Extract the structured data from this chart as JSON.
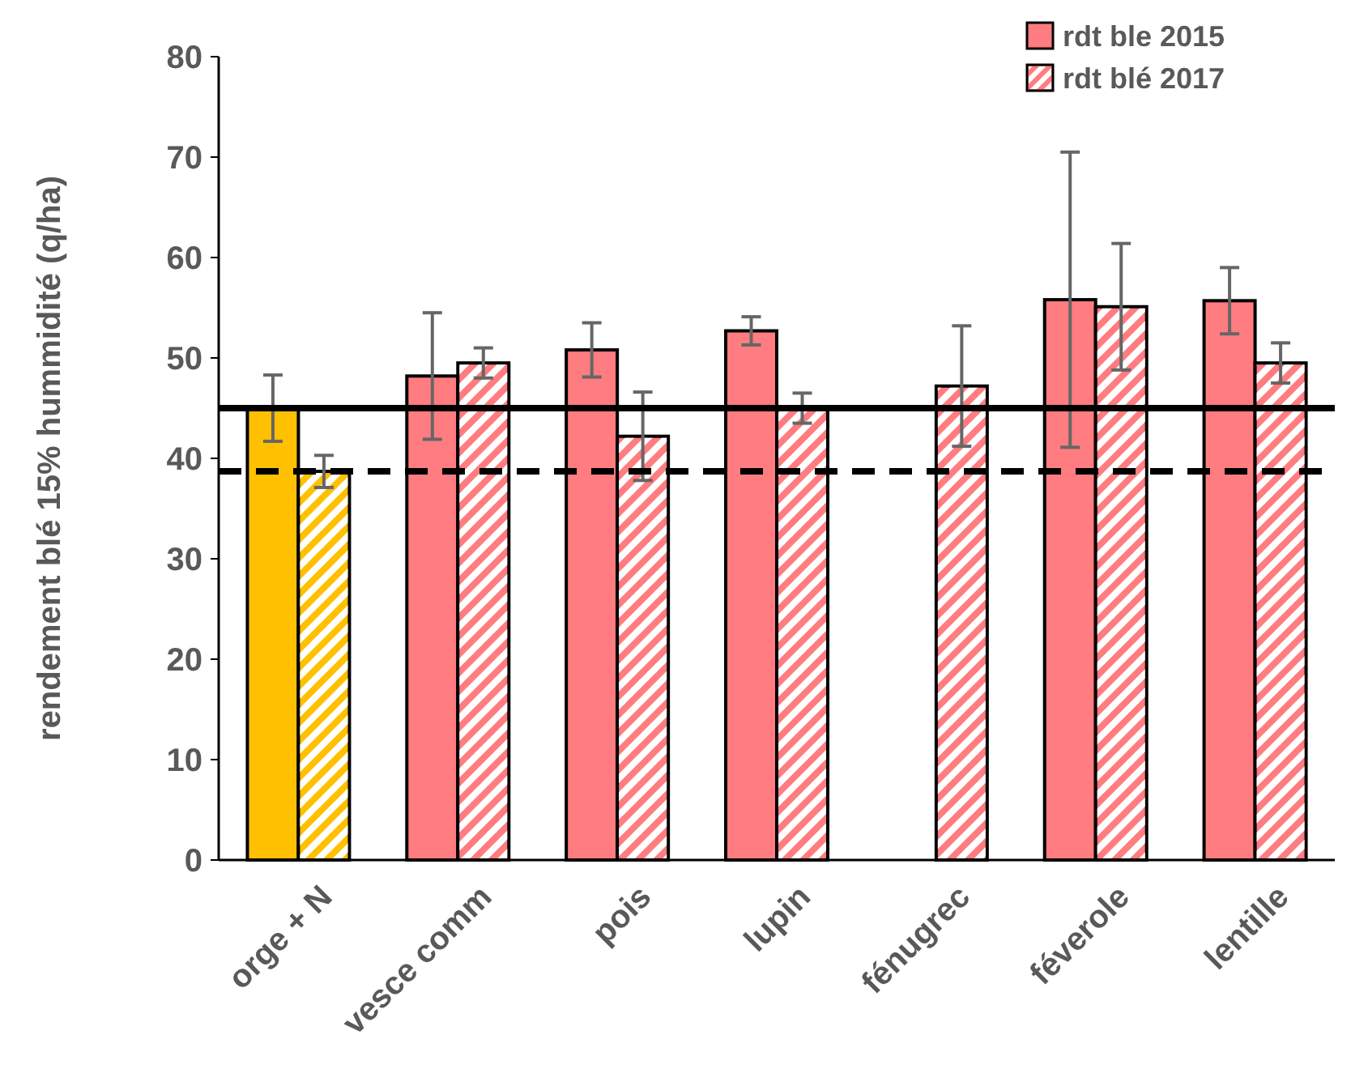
{
  "chart_data": {
    "type": "bar",
    "ylabel": "rendement blé 15% hummidité (q/ha)",
    "categories": [
      "orge + N",
      "vesce comm",
      "pois",
      "lupin",
      "fénugrec",
      "féverole",
      "lentille"
    ],
    "series": [
      {
        "name": "rdt ble 2015",
        "color": "#ff7c80",
        "colors": [
          "#ffc000",
          "#ff7c80",
          "#ff7c80",
          "#ff7c80",
          "#ff7c80",
          "#ff7c80",
          "#ff7c80"
        ],
        "values": [
          45,
          48.2,
          50.8,
          52.7,
          null,
          55.8,
          55.7
        ],
        "errors": [
          3.3,
          6.3,
          2.7,
          1.4,
          null,
          14.7,
          3.3
        ]
      },
      {
        "name": "rdt blé 2017",
        "color": "#ff7c80",
        "colors": [
          "#ffc000",
          "#ff7c80",
          "#ff7c80",
          "#ff7c80",
          "#ff7c80",
          "#ff7c80",
          "#ff7c80"
        ],
        "values": [
          38.7,
          49.5,
          42.2,
          45,
          47.2,
          55.1,
          49.5
        ],
        "errors": [
          1.6,
          1.5,
          4.4,
          1.5,
          6,
          6.3,
          2
        ]
      }
    ],
    "ylim": [
      0,
      80
    ],
    "yticks": [
      0,
      10,
      20,
      30,
      40,
      50,
      60,
      70,
      80
    ],
    "grid": false,
    "legend": "top right",
    "ref_lines": [
      {
        "axis": "y",
        "value": 45,
        "color": "#000000",
        "line_style": "solid"
      },
      {
        "axis": "y",
        "value": 38.7,
        "color": "#000000",
        "line_style": "dashed"
      }
    ]
  }
}
